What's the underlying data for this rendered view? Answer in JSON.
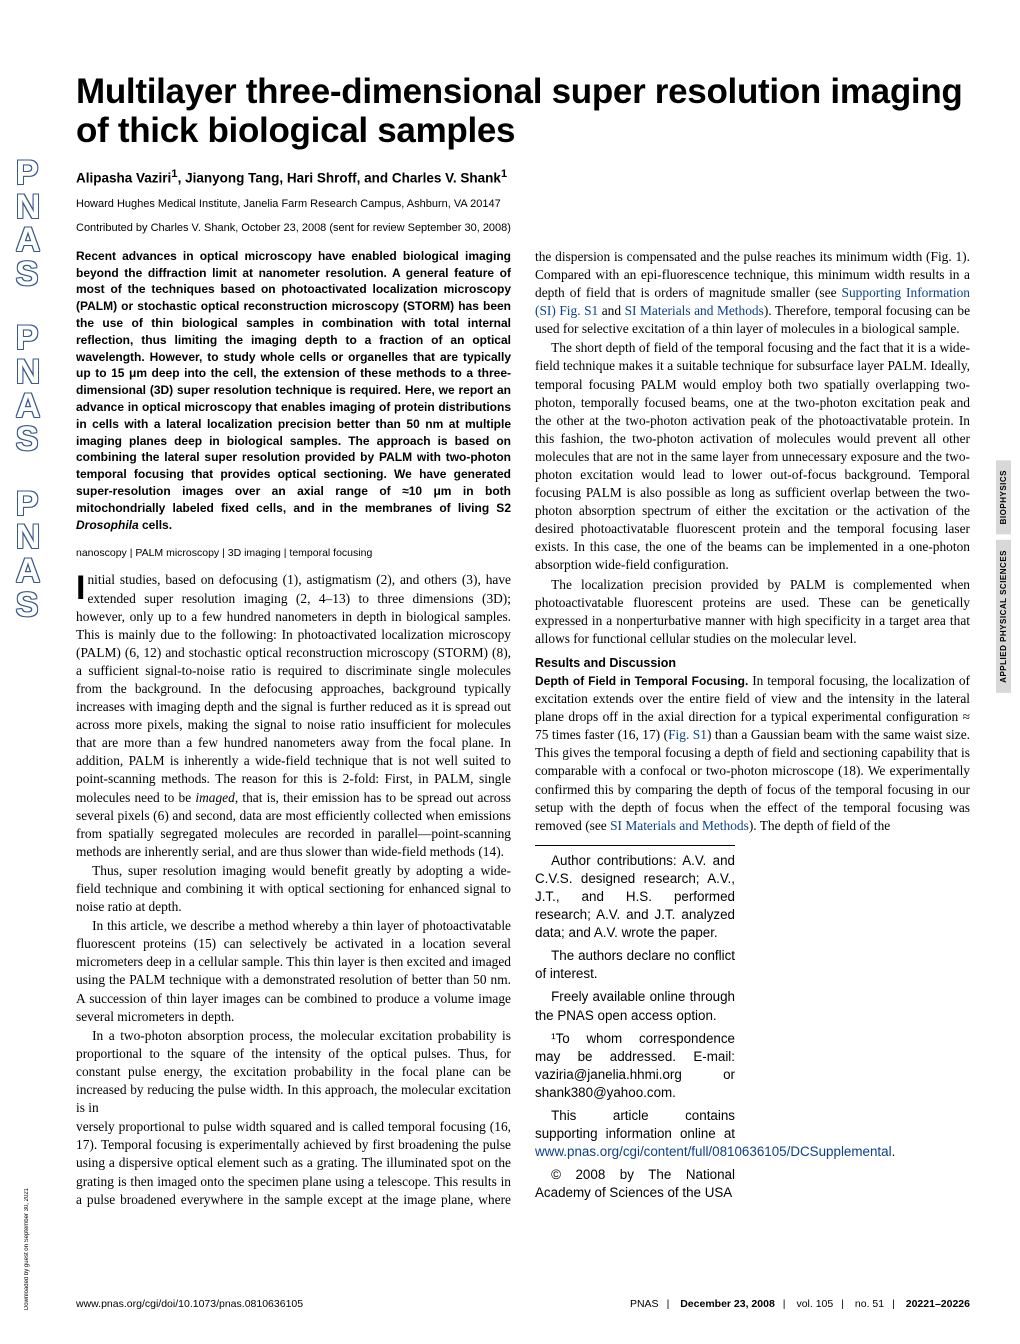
{
  "title": "Multilayer three-dimensional super resolution imaging of thick biological samples",
  "authors_html": "Alipasha Vaziri<sup>1</sup>, Jianyong Tang, Hari Shroff, and Charles V. Shank<sup>1</sup>",
  "affiliation": "Howard Hughes Medical Institute, Janelia Farm Research Campus, Ashburn, VA 20147",
  "contributed": "Contributed by Charles V. Shank, October 23, 2008 (sent for review September 30, 2008)",
  "abstract": "Recent advances in optical microscopy have enabled biological imaging beyond the diffraction limit at nanometer resolution. A general feature of most of the techniques based on photoactivated localization microscopy (PALM) or stochastic optical reconstruction microscopy (STORM) has been the use of thin biological samples in combination with total internal reflection, thus limiting the imaging depth to a fraction of an optical wavelength. However, to study whole cells or organelles that are typically up to 15 μm deep into the cell, the extension of these methods to a three-dimensional (3D) super resolution technique is required. Here, we report an advance in optical microscopy that enables imaging of protein distributions in cells with a lateral localization precision better than 50 nm at multiple imaging planes deep in biological samples. The approach is based on combining the lateral super resolution provided by PALM with two-photon temporal focusing that provides optical sectioning. We have generated super-resolution images over an axial range of ≈10 μm in both mitochondrially labeled fixed cells, and in the membranes of living S2 <i>Drosophila</i> cells.",
  "keywords": "nanoscopy | PALM microscopy | 3D imaging | temporal focusing",
  "p1": "Initial studies, based on defocusing (1), astigmatism (2), and others (3), have extended super resolution imaging (2, 4–13) to three dimensions (3D); however, only up to a few hundred nanometers in depth in biological samples. This is mainly due to the following: In photoactivated localization microscopy (PALM) (6, 12) and stochastic optical reconstruction microscopy (STORM) (8), a sufficient signal-to-noise ratio is required to discriminate single molecules from the background. In the defocusing approaches, background typically increases with imaging depth and the signal is further reduced as it is spread out across more pixels, making the signal to noise ratio insufficient for molecules that are more than a few hundred nanometers away from the focal plane. In addition, PALM is inherently a wide-field technique that is not well suited to point-scanning methods. The reason for this is 2-fold: First, in PALM, single molecules need to be <i>imaged</i>, that is, their emission has to be spread out across several pixels (6) and second, data are most efficiently collected when emissions from spatially segregated molecules are recorded in parallel—point-scanning methods are inherently serial, and are thus slower than wide-field methods (14).",
  "p2": "Thus, super resolution imaging would benefit greatly by adopting a wide-field technique and combining it with optical sectioning for enhanced signal to noise ratio at depth.",
  "p3": "In this article, we describe a method whereby a thin layer of photoactivatable fluorescent proteins (15) can selectively be activated in a location several micrometers deep in a cellular sample. This thin layer is then excited and imaged using the PALM technique with a demonstrated resolution of better than 50 nm. A succession of thin layer images can be combined to produce a volume image several micrometers in depth.",
  "p4": "In a two-photon absorption process, the molecular excitation probability is proportional to the square of the intensity of the optical pulses. Thus, for constant pulse energy, the excitation probability in the focal plane can be increased by reducing the pulse width. In this approach, the molecular excitation is in",
  "p5_pre": "versely proportional to pulse width squared and is called temporal focusing (16, 17). Temporal focusing is experimentally achieved by first broadening the pulse using a dispersive optical element such as a grating. The illuminated spot on the grating is then imaged onto the specimen plane using a telescope. This results in a pulse broadened everywhere in the sample except at the image plane, where the dispersion is compensated and the pulse reaches its minimum width (Fig. 1). Compared with an epi-fluorescence technique, this minimum width results in a depth of field that is orders of magnitude smaller (see ",
  "p5_link1": "Supporting Information (SI) Fig. S1",
  "p5_mid": " and ",
  "p5_link2": "SI Materials and Methods",
  "p5_post": "). Therefore, temporal focusing can be used for selective excitation of a thin layer of molecules in a biological sample.",
  "p6": "The short depth of field of the temporal focusing and the fact that it is a wide-field technique makes it a suitable technique for subsurface layer PALM. Ideally, temporal focusing PALM would employ both two spatially overlapping two-photon, temporally focused beams, one at the two-photon excitation peak and the other at the two-photon activation peak of the photoactivatable protein. In this fashion, the two-photon activation of molecules would prevent all other molecules that are not in the same layer from unnecessary exposure and the two-photon excitation would lead to lower out-of-focus background. Temporal focusing PALM is also possible as long as sufficient overlap between the two-photon absorption spectrum of either the excitation or the activation of the desired photoactivatable fluorescent protein and the temporal focusing laser exists. In this case, the one of the beams can be implemented in a one-photon absorption wide-field configuration.",
  "p7": "The localization precision provided by PALM is complemented when photoactivatable fluorescent proteins are used. These can be genetically expressed in a nonperturbative manner with high specificity in a target area that allows for functional cellular studies on the molecular level.",
  "results_heading": "Results and Discussion",
  "dof_runin": "Depth of Field in Temporal Focusing.",
  "p8_pre": " In temporal focusing, the localization of excitation extends over the entire field of view and the intensity in the lateral plane drops off in the axial direction for a typical experimental configuration ≈ 75 times faster (16, 17) (",
  "p8_link": "Fig. S1",
  "p8_mid": ") than a Gaussian beam with the same waist size. This gives the temporal focusing a depth of field and sectioning capability that is comparable with a confocal or two-photon microscope (18). We experimentally confirmed this by comparing the depth of focus of the temporal focusing in our setup with the depth of focus when the effect of the temporal focusing was removed (see ",
  "p8_link2": "SI Materials and Methods",
  "p8_post": "). The depth of field of the",
  "fn1": "Author contributions: A.V. and C.V.S. designed research; A.V., J.T., and H.S. performed research; A.V. and J.T. analyzed data; and A.V. wrote the paper.",
  "fn2": "The authors declare no conflict of interest.",
  "fn3": "Freely available online through the PNAS open access option.",
  "fn4_pre": "¹To whom correspondence may be addressed. E-mail: vaziria@janelia.hhmi.org or shank380@yahoo.com.",
  "fn5_pre": "This article contains supporting information online at ",
  "fn5_link": "www.pnas.org/cgi/content/full/0810636105/DCSupplemental",
  "fn5_post": ".",
  "fn6": "© 2008 by The National Academy of Sciences of the USA",
  "footer_left": "www.pnas.org/cgi/doi/10.1073/pnas.0810636105",
  "footer_right_parts": [
    "PNAS",
    "December 23, 2008",
    "vol. 105",
    "no. 51",
    "20221–20226"
  ],
  "tab1": "BIOPHYSICS",
  "tab2": "APPLIED PHYSICAL SCIENCES",
  "dl": "Downloaded by guest on September 30, 2021",
  "colors": {
    "link": "#0a3f8a",
    "tab_bg": "#d8d8d8",
    "pnas_outline": "#3a5a8a"
  }
}
